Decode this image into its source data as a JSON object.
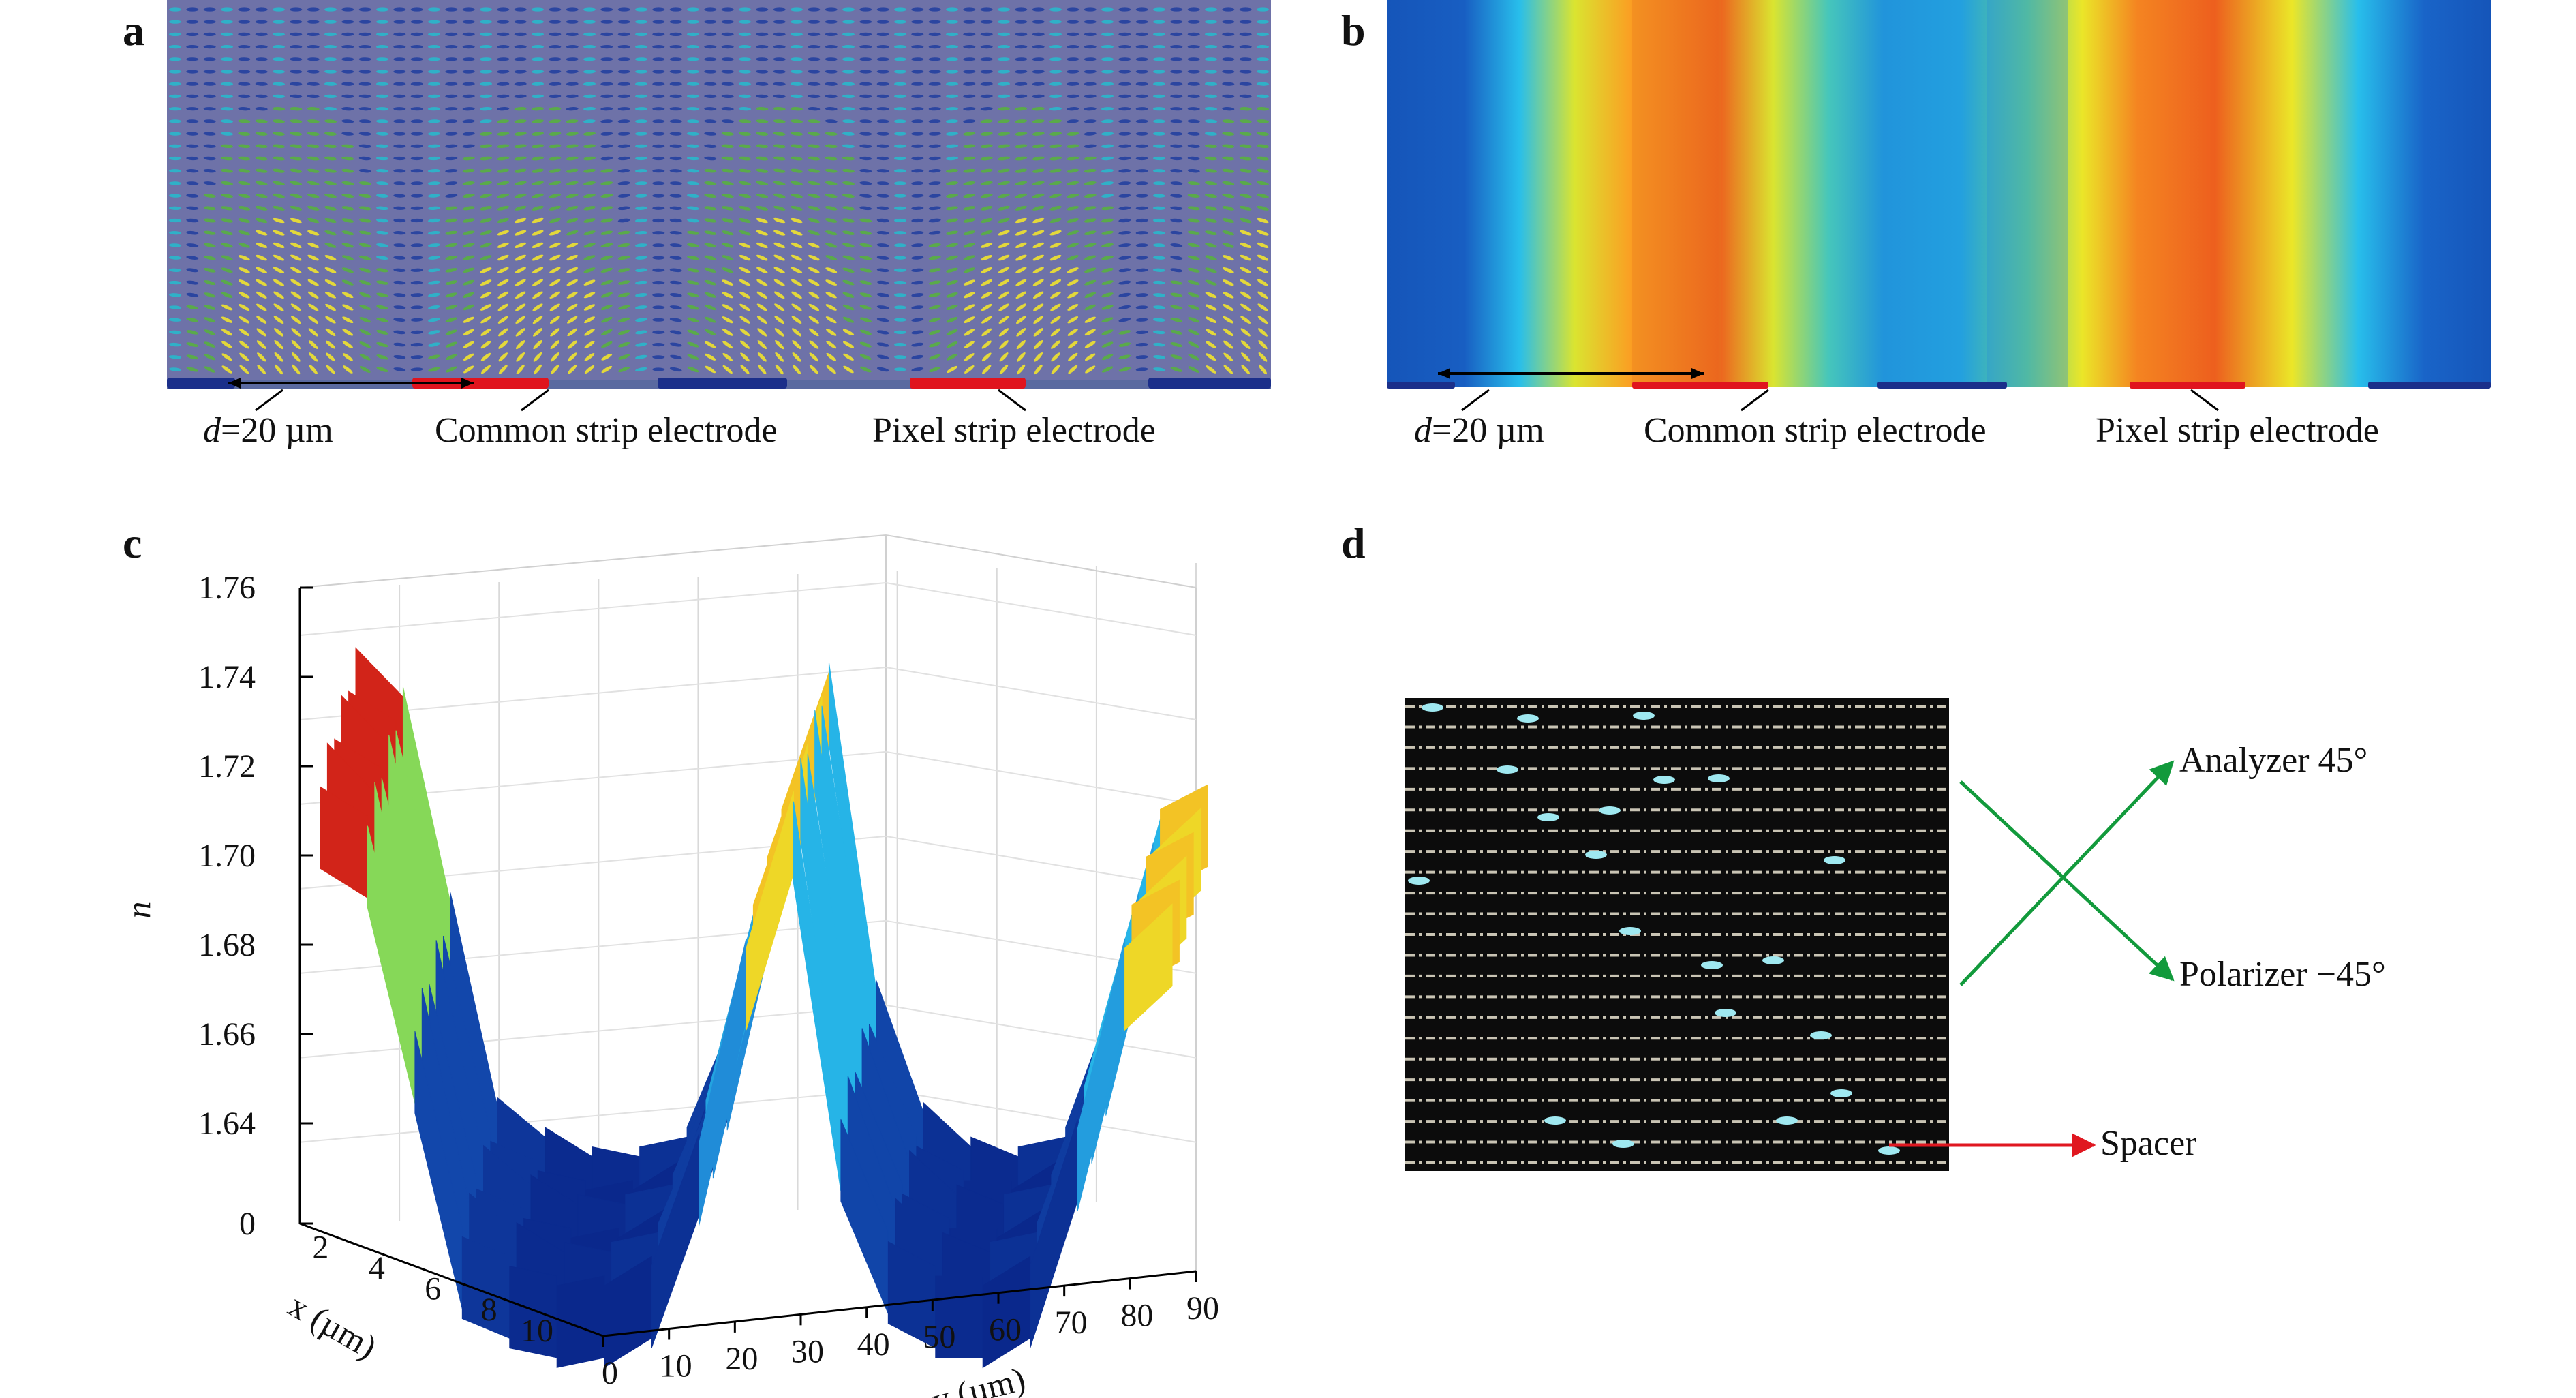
{
  "panels": {
    "a": {
      "letter": "a",
      "labels": {
        "d_var": "d",
        "d_value": "=20 µm",
        "common": "Common strip electrode",
        "pixel": "Pixel strip electrode"
      }
    },
    "b": {
      "letter": "b",
      "labels": {
        "d_var": "d",
        "d_value": "=20 µm",
        "common": "Common strip electrode",
        "pixel": "Pixel strip electrode"
      }
    },
    "c": {
      "letter": "c"
    },
    "d": {
      "letter": "d",
      "labels": {
        "analyzer": "Analyzer 45°",
        "polarizer": "Polarizer −45°",
        "spacer": "Spacer"
      }
    }
  },
  "chart_data": {
    "type": "surface",
    "zlabel": "n",
    "xlabel": "x (µm)",
    "ylabel": "y (µm)",
    "z_ticks": [
      "1.76",
      "1.74",
      "1.72",
      "1.70",
      "1.68",
      "1.66",
      "1.64",
      "0"
    ],
    "x_ticks": [
      "2",
      "4",
      "6",
      "8",
      "10"
    ],
    "y_ticks": [
      "0",
      "10",
      "20",
      "30",
      "40",
      "50",
      "60",
      "70",
      "80",
      "90"
    ],
    "zlim": [
      1.63,
      1.76
    ],
    "x_range": [
      0,
      10
    ],
    "y_range": [
      0,
      90
    ],
    "colormap": "jet",
    "profile_along_y": [
      {
        "y": 0,
        "n": 1.738
      },
      {
        "y": 5,
        "n": 1.73
      },
      {
        "y": 10,
        "n": 1.688
      },
      {
        "y": 15,
        "n": 1.646
      },
      {
        "y": 20,
        "n": 1.64
      },
      {
        "y": 25,
        "n": 1.636
      },
      {
        "y": 30,
        "n": 1.636
      },
      {
        "y": 35,
        "n": 1.64
      },
      {
        "y": 40,
        "n": 1.665
      },
      {
        "y": 45,
        "n": 1.705
      },
      {
        "y": 50,
        "n": 1.735
      },
      {
        "y": 55,
        "n": 1.67
      },
      {
        "y": 60,
        "n": 1.645
      },
      {
        "y": 65,
        "n": 1.638
      },
      {
        "y": 70,
        "n": 1.636
      },
      {
        "y": 75,
        "n": 1.64
      },
      {
        "y": 80,
        "n": 1.668
      },
      {
        "y": 85,
        "n": 1.705
      },
      {
        "y": 90,
        "n": 1.712
      }
    ]
  },
  "colors": {
    "lc_background": "#6e72a8",
    "common_electrode": "#1b2f8a",
    "pixel_electrode": "#e0141e",
    "green_arrow": "#129a3c",
    "red_arrow": "#e01720"
  },
  "icons": [
    "molecule-ellipse",
    "arrow-double",
    "arrow-right"
  ]
}
